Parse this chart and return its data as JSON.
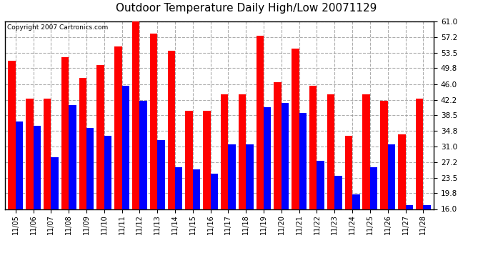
{
  "title": "Outdoor Temperature Daily High/Low 20071129",
  "copyright": "Copyright 2007 Cartronics.com",
  "dates": [
    "11/05",
    "11/06",
    "11/07",
    "11/08",
    "11/09",
    "11/10",
    "11/11",
    "11/12",
    "11/13",
    "11/14",
    "11/15",
    "11/16",
    "11/17",
    "11/18",
    "11/19",
    "11/20",
    "11/21",
    "11/22",
    "11/23",
    "11/24",
    "11/25",
    "11/26",
    "11/27",
    "11/28"
  ],
  "highs": [
    51.5,
    42.5,
    42.5,
    52.5,
    47.5,
    50.5,
    55.0,
    61.0,
    58.0,
    54.0,
    39.5,
    39.5,
    43.5,
    43.5,
    57.5,
    46.5,
    54.5,
    45.5,
    43.5,
    33.5,
    43.5,
    42.0,
    34.0,
    42.5
  ],
  "lows": [
    37.0,
    36.0,
    28.5,
    41.0,
    35.5,
    33.5,
    45.5,
    42.0,
    32.5,
    26.0,
    25.5,
    24.5,
    31.5,
    31.5,
    40.5,
    41.5,
    39.0,
    27.5,
    24.0,
    19.5,
    26.0,
    31.5,
    17.0,
    17.0
  ],
  "high_color": "#ff0000",
  "low_color": "#0000ff",
  "bg_color": "#ffffff",
  "plot_bg_color": "#ffffff",
  "grid_color": "#999999",
  "yticks": [
    16.0,
    19.8,
    23.5,
    27.2,
    31.0,
    34.8,
    38.5,
    42.2,
    46.0,
    49.8,
    53.5,
    57.2,
    61.0
  ],
  "ymin": 16.0,
  "ymax": 61.0,
  "bar_width": 0.42
}
